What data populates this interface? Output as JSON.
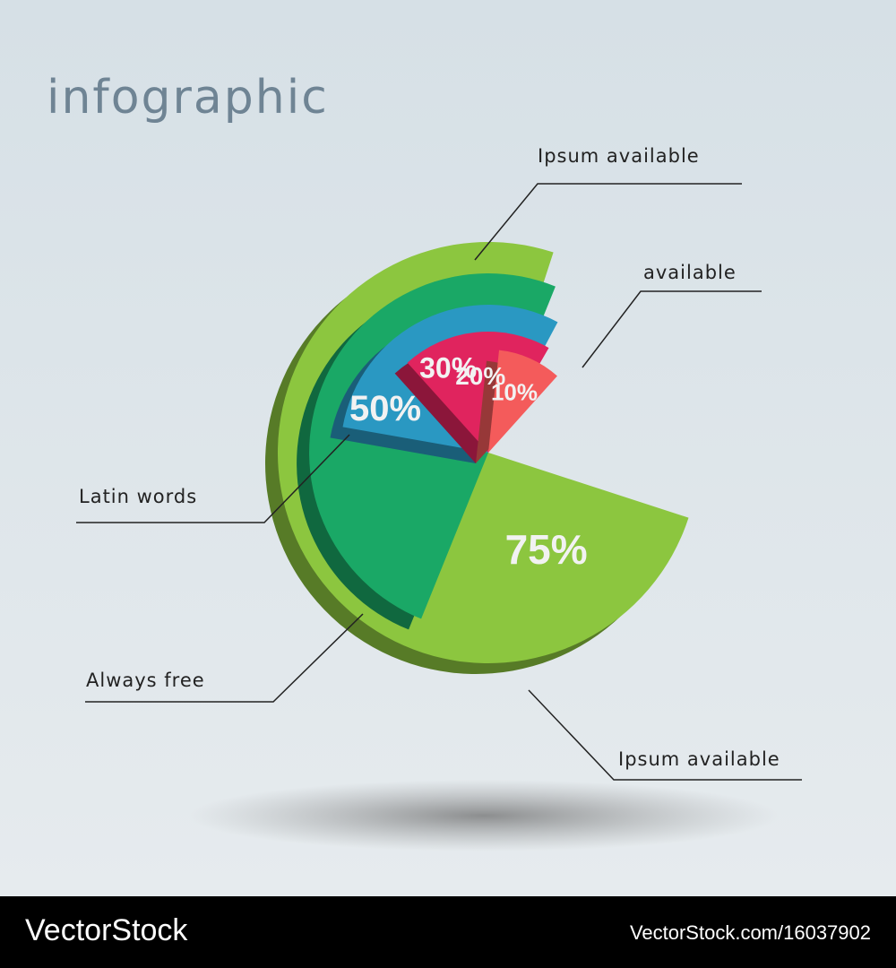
{
  "chart_data": {
    "type": "radial-sectors",
    "title": "infographic",
    "categories": [
      "Ipsum available",
      "Always free",
      "Latin words",
      "Ipsum available",
      "available"
    ],
    "values": [
      75,
      50,
      30,
      20,
      10
    ],
    "value_labels": [
      "75%",
      "50%",
      "30%",
      "20%",
      "10%"
    ],
    "colors": [
      "#8cc63f",
      "#1aa866",
      "#2a98c2",
      "#e0245e",
      "#f45b5b"
    ]
  },
  "footer": {
    "brand": "VectorStock",
    "id": "VectorStock.com/16037902"
  }
}
